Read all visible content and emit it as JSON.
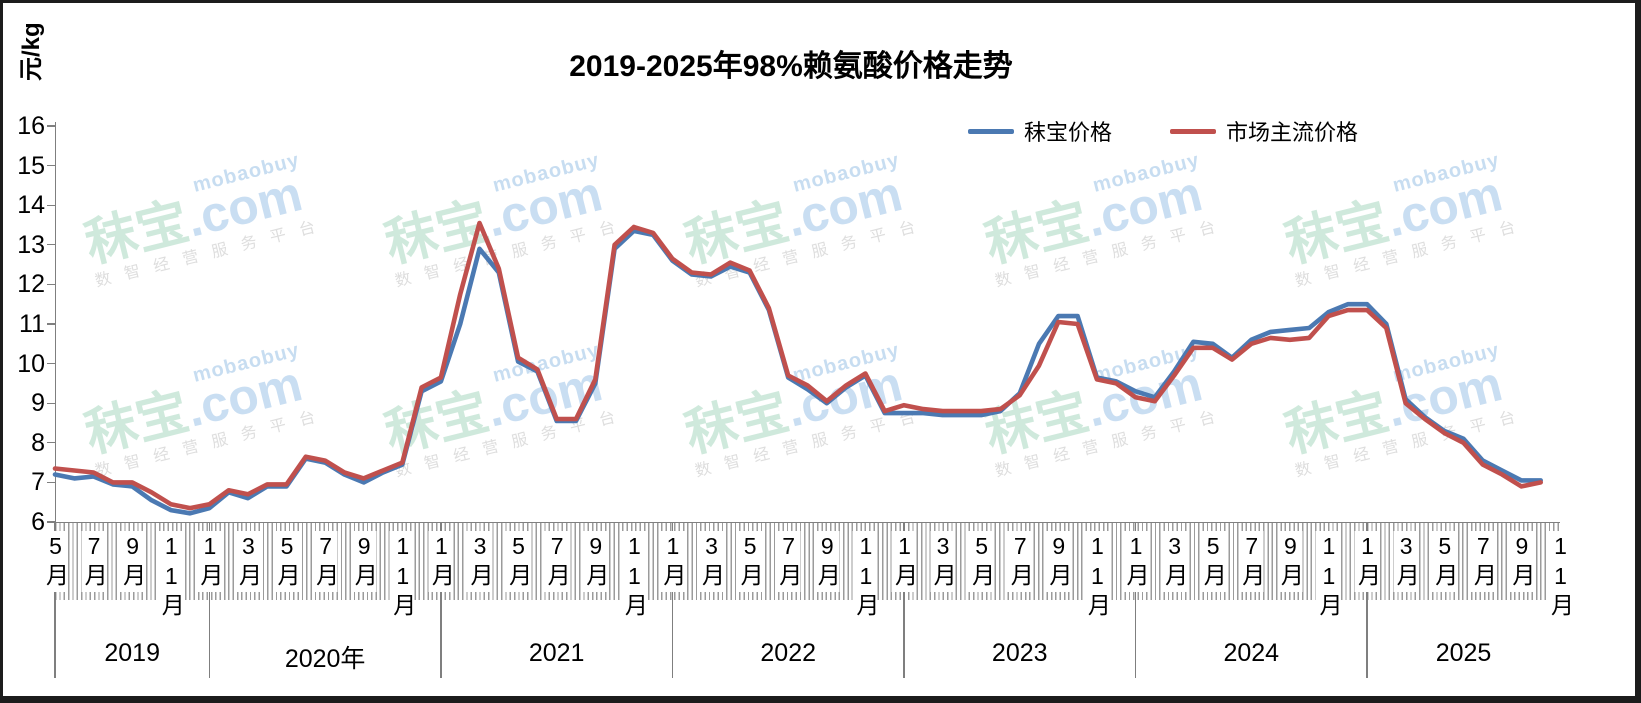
{
  "title": "2019-2025年98%赖氨酸价格走势",
  "y_axis": {
    "title": "元/kg",
    "ticks": [
      16,
      15,
      14,
      13,
      12,
      11,
      10,
      9,
      8,
      7,
      6
    ]
  },
  "legend": [
    {
      "label": "秣宝价格",
      "color": "#4b79b2"
    },
    {
      "label": "市场主流价格",
      "color": "#c0504d"
    }
  ],
  "watermark": {
    "small_domain": "mobaobuy",
    "brand": "秣宝",
    "com": ".com",
    "tagline": "数智经营服务平台"
  },
  "x_axis": {
    "month_labels": [
      {
        "m": 0,
        "t": "5月"
      },
      {
        "m": 2,
        "t": "7月"
      },
      {
        "m": 4,
        "t": "9月"
      },
      {
        "m": 6,
        "t": "11月"
      },
      {
        "m": 8,
        "t": "1月"
      },
      {
        "m": 10,
        "t": "3月"
      },
      {
        "m": 12,
        "t": "5月"
      },
      {
        "m": 14,
        "t": "7月"
      },
      {
        "m": 16,
        "t": "9月"
      },
      {
        "m": 18,
        "t": "11月"
      },
      {
        "m": 20,
        "t": "1月"
      },
      {
        "m": 22,
        "t": "3月"
      },
      {
        "m": 24,
        "t": "5月"
      },
      {
        "m": 26,
        "t": "7月"
      },
      {
        "m": 28,
        "t": "9月"
      },
      {
        "m": 30,
        "t": "11月"
      },
      {
        "m": 32,
        "t": "1月"
      },
      {
        "m": 34,
        "t": "3月"
      },
      {
        "m": 36,
        "t": "5月"
      },
      {
        "m": 38,
        "t": "7月"
      },
      {
        "m": 40,
        "t": "9月"
      },
      {
        "m": 42,
        "t": "11月"
      },
      {
        "m": 44,
        "t": "1月"
      },
      {
        "m": 46,
        "t": "3月"
      },
      {
        "m": 48,
        "t": "5月"
      },
      {
        "m": 50,
        "t": "7月"
      },
      {
        "m": 52,
        "t": "9月"
      },
      {
        "m": 54,
        "t": "11月"
      },
      {
        "m": 56,
        "t": "1月"
      },
      {
        "m": 58,
        "t": "3月"
      },
      {
        "m": 60,
        "t": "5月"
      },
      {
        "m": 62,
        "t": "7月"
      },
      {
        "m": 64,
        "t": "9月"
      },
      {
        "m": 66,
        "t": "11月"
      },
      {
        "m": 68,
        "t": "1月"
      },
      {
        "m": 70,
        "t": "3月"
      },
      {
        "m": 72,
        "t": "5月"
      },
      {
        "m": 74,
        "t": "7月"
      },
      {
        "m": 76,
        "t": "9月"
      },
      {
        "m": 78,
        "t": "11月"
      }
    ],
    "years": [
      {
        "label": "2019",
        "s": 0,
        "e": 8
      },
      {
        "label": "2020年",
        "s": 8,
        "e": 20
      },
      {
        "label": "2021",
        "s": 20,
        "e": 32
      },
      {
        "label": "2022",
        "s": 32,
        "e": 44
      },
      {
        "label": "2023",
        "s": 44,
        "e": 56
      },
      {
        "label": "2024",
        "s": 56,
        "e": 68
      },
      {
        "label": "2025",
        "s": 68,
        "e": 78
      }
    ]
  },
  "chart_data": {
    "type": "line",
    "title": "2019-2025年98%赖氨酸价格走势",
    "ylabel": "元/kg",
    "ylim": [
      6,
      16
    ],
    "grid": false,
    "legend_position": "top",
    "x": [
      "2019-05",
      "2019-06",
      "2019-07",
      "2019-08",
      "2019-09",
      "2019-10",
      "2019-11",
      "2019-12",
      "2020-01",
      "2020-02",
      "2020-03",
      "2020-04",
      "2020-05",
      "2020-06",
      "2020-07",
      "2020-08",
      "2020-09",
      "2020-10",
      "2020-11",
      "2020-12",
      "2021-01",
      "2021-02",
      "2021-03",
      "2021-04",
      "2021-05",
      "2021-06",
      "2021-07",
      "2021-08",
      "2021-09",
      "2021-10",
      "2021-11",
      "2021-12",
      "2022-01",
      "2022-02",
      "2022-03",
      "2022-04",
      "2022-05",
      "2022-06",
      "2022-07",
      "2022-08",
      "2022-09",
      "2022-10",
      "2022-11",
      "2022-12",
      "2023-01",
      "2023-02",
      "2023-03",
      "2023-04",
      "2023-05",
      "2023-06",
      "2023-07",
      "2023-08",
      "2023-09",
      "2023-10",
      "2023-11",
      "2023-12",
      "2024-01",
      "2024-02",
      "2024-03",
      "2024-04",
      "2024-05",
      "2024-06",
      "2024-07",
      "2024-08",
      "2024-09",
      "2024-10",
      "2024-11",
      "2024-12",
      "2025-01",
      "2025-02",
      "2025-03",
      "2025-04",
      "2025-05",
      "2025-06",
      "2025-07",
      "2025-08",
      "2025-09",
      "2025-10"
    ],
    "series": [
      {
        "name": "秣宝价格",
        "color": "#4b79b2",
        "values": [
          7.2,
          7.1,
          7.15,
          6.95,
          6.9,
          6.55,
          6.3,
          6.22,
          6.35,
          6.75,
          6.6,
          6.9,
          6.9,
          7.6,
          7.5,
          7.2,
          7.0,
          7.25,
          7.45,
          9.3,
          9.55,
          11.0,
          12.9,
          12.3,
          10.05,
          9.8,
          8.55,
          8.55,
          9.5,
          12.9,
          13.35,
          13.25,
          12.6,
          12.25,
          12.2,
          12.45,
          12.3,
          11.35,
          9.65,
          9.35,
          9.0,
          9.4,
          9.7,
          8.75,
          8.75,
          8.75,
          8.7,
          8.7,
          8.7,
          8.8,
          9.25,
          10.5,
          11.2,
          11.2,
          9.65,
          9.55,
          9.3,
          9.15,
          9.8,
          10.55,
          10.5,
          10.15,
          10.6,
          10.8,
          10.85,
          10.9,
          11.3,
          11.5,
          11.5,
          11.0,
          9.1,
          8.65,
          8.3,
          8.1,
          7.55,
          7.3,
          7.05,
          7.05
        ]
      },
      {
        "name": "市场主流价格",
        "color": "#c0504d",
        "values": [
          7.35,
          7.3,
          7.25,
          7.0,
          7.0,
          6.75,
          6.45,
          6.35,
          6.45,
          6.8,
          6.7,
          6.95,
          6.95,
          7.65,
          7.55,
          7.25,
          7.1,
          7.3,
          7.5,
          9.4,
          9.65,
          11.75,
          13.55,
          12.4,
          10.15,
          9.85,
          8.6,
          8.6,
          9.6,
          13.0,
          13.45,
          13.3,
          12.65,
          12.3,
          12.25,
          12.55,
          12.35,
          11.4,
          9.7,
          9.45,
          9.05,
          9.45,
          9.75,
          8.8,
          8.95,
          8.85,
          8.8,
          8.8,
          8.8,
          8.85,
          9.2,
          9.95,
          11.05,
          11.0,
          9.6,
          9.5,
          9.15,
          9.05,
          9.7,
          10.4,
          10.4,
          10.1,
          10.5,
          10.65,
          10.6,
          10.65,
          11.2,
          11.35,
          11.35,
          10.9,
          9.0,
          8.6,
          8.25,
          8.0,
          7.45,
          7.2,
          6.9,
          7.0
        ]
      }
    ]
  }
}
